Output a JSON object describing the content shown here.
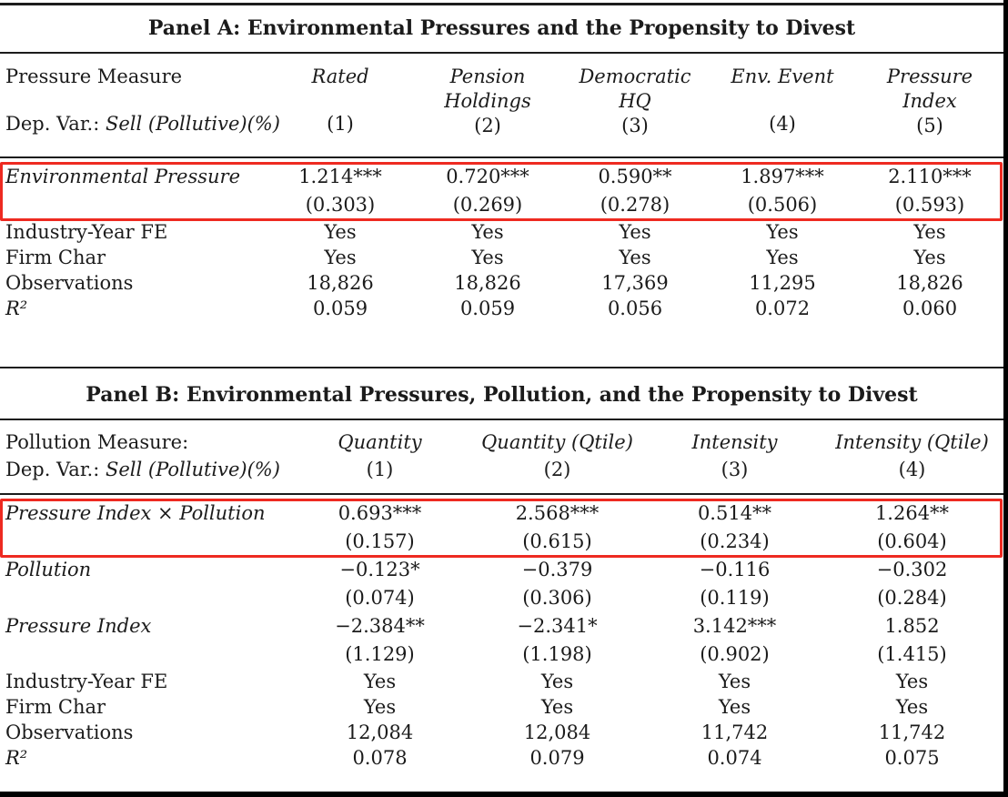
{
  "colors": {
    "highlight": "#ee2a21",
    "text": "#1b1b1b",
    "rule": "#1c1c1c",
    "bg": "#ffffff"
  },
  "panel_a": {
    "title": "Panel A: Environmental Pressures and the Propensity to Divest",
    "measure_label": "Pressure Measure",
    "dep_var_prefix": "Dep. Var.: ",
    "dep_var_italic": "Sell (Pollutive)(%)",
    "columns": [
      {
        "name": "Rated",
        "num": "(1)"
      },
      {
        "name": "Pension Holdings",
        "num": "(2)"
      },
      {
        "name": "Democratic HQ",
        "num": "(3)"
      },
      {
        "name": "Env. Event",
        "num": "(4)"
      },
      {
        "name": "Pressure Index",
        "num": "(5)"
      }
    ],
    "rows": [
      [
        "Environmental Pressure",
        "1.214***",
        "0.720***",
        "0.590**",
        "1.897***",
        "2.110***"
      ],
      [
        "",
        "(0.303)",
        "(0.269)",
        "(0.278)",
        "(0.506)",
        "(0.593)"
      ],
      [
        "Industry-Year FE",
        "Yes",
        "Yes",
        "Yes",
        "Yes",
        "Yes"
      ],
      [
        "Firm Char",
        "Yes",
        "Yes",
        "Yes",
        "Yes",
        "Yes"
      ],
      [
        "Observations",
        "18,826",
        "18,826",
        "17,369",
        "11,295",
        "18,826"
      ],
      [
        "R²",
        "0.059",
        "0.059",
        "0.056",
        "0.072",
        "0.060"
      ]
    ]
  },
  "panel_b": {
    "title": "Panel B: Environmental Pressures, Pollution, and the Propensity to Divest",
    "measure_label": "Pollution Measure:",
    "dep_var_prefix": "Dep. Var.: ",
    "dep_var_italic": "Sell (Pollutive)(%)",
    "columns": [
      {
        "name": "Quantity",
        "num": "(1)"
      },
      {
        "name": "Quantity (Qtile)",
        "num": "(2)"
      },
      {
        "name": "Intensity",
        "num": "(3)"
      },
      {
        "name": "Intensity (Qtile)",
        "num": "(4)"
      }
    ],
    "rows": [
      [
        "Pressure Index × Pollution",
        "0.693***",
        "2.568***",
        "0.514**",
        "1.264**"
      ],
      [
        "",
        "(0.157)",
        "(0.615)",
        "(0.234)",
        "(0.604)"
      ],
      [
        "Pollution",
        "−0.123*",
        "−0.379",
        "−0.116",
        "−0.302"
      ],
      [
        "",
        "(0.074)",
        "(0.306)",
        "(0.119)",
        "(0.284)"
      ],
      [
        "Pressure Index",
        "−2.384**",
        "−2.341*",
        "3.142***",
        "1.852"
      ],
      [
        "",
        "(1.129)",
        "(1.198)",
        "(0.902)",
        "(1.415)"
      ],
      [
        "Industry-Year FE",
        "Yes",
        "Yes",
        "Yes",
        "Yes"
      ],
      [
        "Firm Char",
        "Yes",
        "Yes",
        "Yes",
        "Yes"
      ],
      [
        "Observations",
        "12,084",
        "12,084",
        "11,742",
        "11,742"
      ],
      [
        "R²",
        "0.078",
        "0.079",
        "0.074",
        "0.075"
      ]
    ]
  }
}
